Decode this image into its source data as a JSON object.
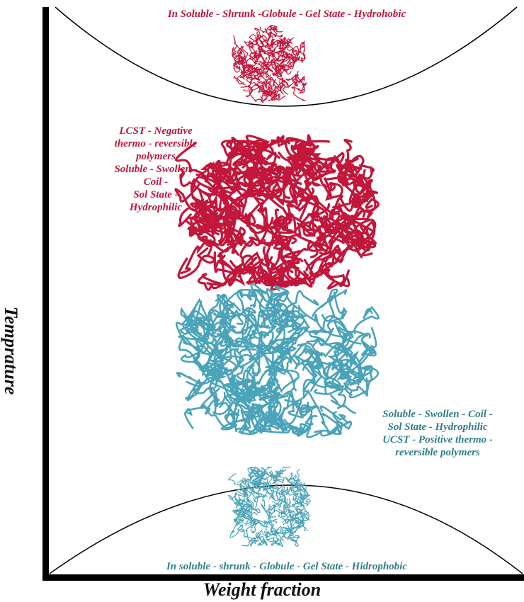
{
  "diagram": {
    "top_state": {
      "label": "In  Soluble - Shrunk -Globule - Gel State - Hydrohobic",
      "color": "#c2163b"
    },
    "lcst_state": {
      "lines": [
        "LCST - Negative",
        "thermo - reversible",
        "polymers",
        "Soluble - Swollen -",
        "Coil -",
        "Sol State -",
        "Hydrophilic"
      ],
      "color": "#c2163b"
    },
    "ucst_state": {
      "lines": [
        "Soluble - Swollen - Coil -",
        "Sol State - Hydrophilic",
        "UCST - Positive thermo -",
        "reversible polymers"
      ],
      "color": "#2f7f86"
    },
    "bottom_state": {
      "label": "In soluble - shrunk - Globule - Gel State - Hidrophobic",
      "color": "#2f7f86"
    },
    "axes": {
      "x_label": "Weight  fraction",
      "y_label": "Temprature"
    },
    "colors": {
      "lcst_polymer": "#c2163b",
      "ucst_polymer": "#4aa3b8",
      "axis": "#000000"
    }
  }
}
